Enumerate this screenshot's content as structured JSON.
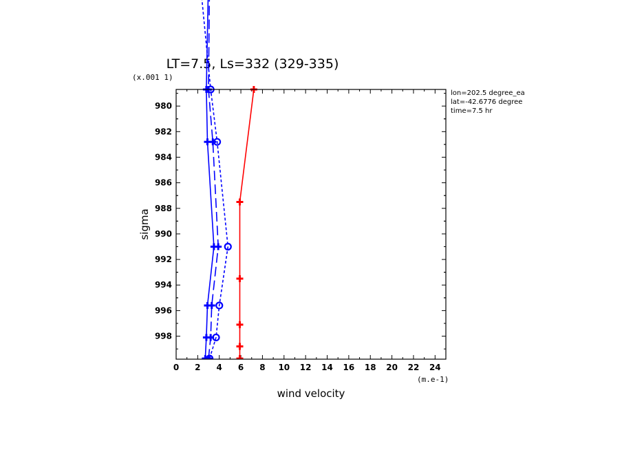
{
  "chart_data": {
    "type": "line",
    "title": "LT=7.5, Ls=332 (329-335)",
    "xlabel": "wind velocity",
    "ylabel": "sigma",
    "x_scale_note": "(m.e-1)",
    "y_scale_note": "(x.001 1)",
    "xlim": [
      0,
      25
    ],
    "ylim": [
      999.8,
      978.7
    ],
    "x_ticks": [
      "0",
      "2",
      "4",
      "6",
      "8",
      "10",
      "12",
      "14",
      "16",
      "18",
      "20",
      "22",
      "24"
    ],
    "y_ticks": [
      "980",
      "982",
      "984",
      "986",
      "988",
      "990",
      "992",
      "994",
      "996",
      "998"
    ],
    "annotations": [
      "lon=202.5 degree_ea",
      "lat=-42.6776 degree",
      "time=7.5 hr"
    ],
    "series": [
      {
        "color": "#0000ff",
        "dash": "solid",
        "marker": "plus",
        "x": [
          3.0,
          2.8,
          2.9,
          3.5,
          2.9,
          2.8,
          2.7
        ],
        "y": [
          970.0,
          978.7,
          982.8,
          991.0,
          995.6,
          998.1,
          999.75
        ]
      },
      {
        "color": "#0000ff",
        "dash": "longdash",
        "marker": "plus",
        "x": [
          3.1,
          3.0,
          3.4,
          3.9,
          3.3,
          3.2,
          3.0
        ],
        "y": [
          970.0,
          978.7,
          982.8,
          991.0,
          995.6,
          998.1,
          999.75
        ]
      },
      {
        "color": "#0000ff",
        "dash": "shortdash",
        "marker": "circle",
        "x": [
          2.2,
          3.2,
          3.8,
          4.8,
          4.0,
          3.7,
          3.1
        ],
        "y": [
          970.0,
          978.7,
          982.8,
          991.0,
          995.6,
          998.1,
          999.75
        ]
      },
      {
        "color": "#ff0000",
        "dash": "solid",
        "marker": "plus",
        "x": [
          7.2,
          5.9,
          5.9,
          5.9,
          5.9,
          5.9
        ],
        "y": [
          978.7,
          987.5,
          993.5,
          997.1,
          998.8,
          999.75
        ]
      }
    ]
  }
}
